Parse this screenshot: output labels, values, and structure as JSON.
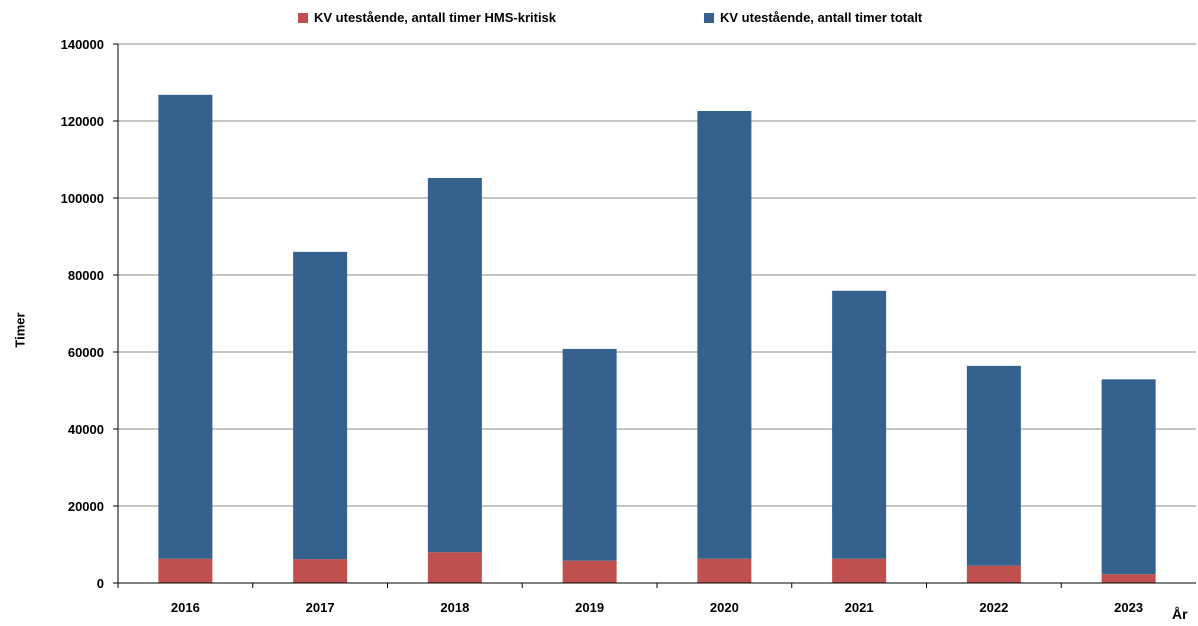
{
  "chart_data": {
    "type": "bar",
    "stacked": true,
    "categories": [
      "2016",
      "2017",
      "2018",
      "2019",
      "2020",
      "2021",
      "2022",
      "2023"
    ],
    "series": [
      {
        "name": "KV utestående, antall timer HMS-kritisk",
        "color": "#C0504D",
        "values": [
          6300,
          6200,
          8000,
          5800,
          6300,
          6300,
          4500,
          2300
        ]
      },
      {
        "name": "KV utestående, antall timer totalt",
        "color": "#35618F",
        "values": [
          120500,
          79800,
          97200,
          55000,
          116300,
          69600,
          51900,
          50600
        ]
      }
    ],
    "xlabel": "År",
    "ylabel": "Timer",
    "ylim": [
      0,
      140000
    ],
    "yticks": [
      "0",
      "20000",
      "40000",
      "60000",
      "80000",
      "100000",
      "120000",
      "140000"
    ],
    "grid": true,
    "legend_position": "top"
  }
}
